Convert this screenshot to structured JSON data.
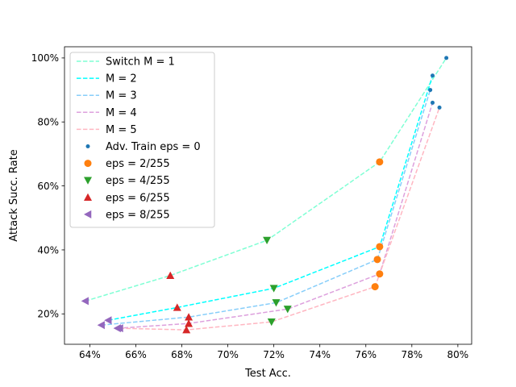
{
  "chart_data": {
    "type": "line",
    "title": "",
    "xlabel": "Test Acc.",
    "ylabel": "Attack Succ. Rate",
    "xlim": [
      62.9,
      80.6
    ],
    "ylim": [
      10.5,
      103.5
    ],
    "xticks": [
      64,
      66,
      68,
      70,
      72,
      74,
      76,
      78,
      80
    ],
    "xtick_labels": [
      "64%",
      "66%",
      "68%",
      "70%",
      "72%",
      "74%",
      "76%",
      "78%",
      "80%"
    ],
    "yticks": [
      20,
      40,
      60,
      80,
      100
    ],
    "ytick_labels": [
      "20%",
      "40%",
      "60%",
      "80%",
      "100%"
    ],
    "legend_position": "upper-left",
    "lines": [
      {
        "name": "Switch M = 1",
        "color": "#7fffd4",
        "x": [
          63.8,
          67.5,
          71.7,
          76.6,
          79.5
        ],
        "y": [
          24.0,
          32.0,
          43.0,
          67.5,
          100.0
        ]
      },
      {
        "name": "M = 2",
        "color": "#00ffff",
        "x": [
          64.8,
          67.8,
          72.0,
          76.6,
          78.9
        ],
        "y": [
          18.0,
          22.0,
          28.0,
          41.0,
          94.5
        ]
      },
      {
        "name": "M = 3",
        "color": "#87cefa",
        "x": [
          64.5,
          68.3,
          72.1,
          76.5,
          78.8
        ],
        "y": [
          16.5,
          19.0,
          23.5,
          37.0,
          90.0
        ]
      },
      {
        "name": "M = 4",
        "color": "#dda0dd",
        "x": [
          65.2,
          68.3,
          72.6,
          76.6,
          78.9
        ],
        "y": [
          15.5,
          17.0,
          21.5,
          32.5,
          86.0
        ]
      },
      {
        "name": "M = 5",
        "color": "#ffb6c1",
        "x": [
          65.3,
          68.2,
          71.9,
          76.4,
          79.2
        ],
        "y": [
          15.5,
          15.0,
          17.5,
          28.5,
          84.5
        ]
      }
    ],
    "scatter": [
      {
        "name": "Adv. Train eps = 0",
        "marker": "dot",
        "color": "#1f77b4",
        "x": [
          79.5,
          78.9,
          78.8,
          78.9,
          79.2
        ],
        "y": [
          100.0,
          94.5,
          90.0,
          86.0,
          84.5
        ]
      },
      {
        "name": "eps = 2/255",
        "marker": "circle",
        "color": "#ff7f0e",
        "x": [
          76.6,
          76.6,
          76.5,
          76.6,
          76.4
        ],
        "y": [
          67.5,
          41.0,
          37.0,
          32.5,
          28.5
        ]
      },
      {
        "name": "eps = 4/255",
        "marker": "triangle-down",
        "color": "#2ca02c",
        "x": [
          71.7,
          72.0,
          72.1,
          72.6,
          71.9
        ],
        "y": [
          43.0,
          28.0,
          23.5,
          21.5,
          17.5
        ]
      },
      {
        "name": "eps = 6/255",
        "marker": "triangle-up",
        "color": "#d62728",
        "x": [
          67.5,
          67.8,
          68.3,
          68.3,
          68.2
        ],
        "y": [
          32.0,
          22.0,
          19.0,
          17.0,
          15.0
        ]
      },
      {
        "name": "eps = 8/255",
        "marker": "triangle-left",
        "color": "#9467bd",
        "x": [
          63.8,
          64.8,
          64.5,
          65.2,
          65.3
        ],
        "y": [
          24.0,
          18.0,
          16.5,
          15.5,
          15.5
        ]
      }
    ]
  }
}
